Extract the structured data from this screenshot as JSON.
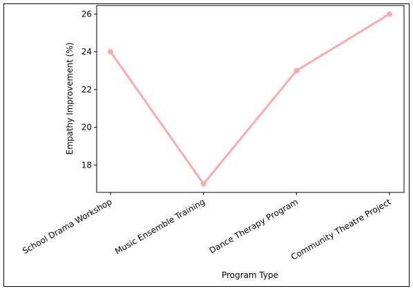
{
  "chart_data": {
    "type": "line",
    "title": "",
    "xlabel": "Program Type",
    "ylabel": "Empathy Improvement (%)",
    "categories": [
      "School Drama Workshop",
      "Music Ensemble Training",
      "Dance Therapy Program",
      "Community Theatre Project"
    ],
    "series": [
      {
        "values": [
          24,
          17,
          23,
          26
        ],
        "color": "#ffaaaa"
      }
    ],
    "ylim": [
      16.55,
      26.45
    ],
    "yticks": [
      18,
      20,
      22,
      24,
      26
    ],
    "grid": false,
    "legend": "none"
  }
}
